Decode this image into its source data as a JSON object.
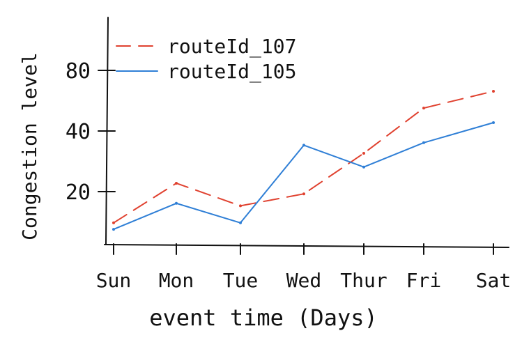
{
  "chart_data": {
    "type": "line",
    "xlabel": "event time (Days)",
    "ylabel": "Congestion level",
    "categories": [
      "Sun",
      "Mon",
      "Tue",
      "Wed",
      "Thur",
      "Fri",
      "Sat"
    ],
    "y_scale": "log",
    "ylim": [
      12,
      120
    ],
    "yticks": [
      20,
      40,
      80
    ],
    "grid": false,
    "legend_position": "top-left",
    "series": [
      {
        "name": "routeId_107",
        "color": "#e0412f",
        "dash": "dashed",
        "x": [
          "Sun",
          "Mon",
          "Tue",
          "Wed",
          "Thur",
          "Fri",
          "Sat"
        ],
        "values": [
          14,
          22,
          17,
          19.5,
          31,
          52,
          63
        ]
      },
      {
        "name": "routeId_105",
        "color": "#2f7fd6",
        "dash": "solid",
        "x": [
          "Sun",
          "Mon",
          "Tue",
          "Wed",
          "Thur",
          "Fri",
          "Sat"
        ],
        "values": [
          13,
          17.5,
          14,
          34,
          26.5,
          35,
          44
        ]
      }
    ]
  }
}
